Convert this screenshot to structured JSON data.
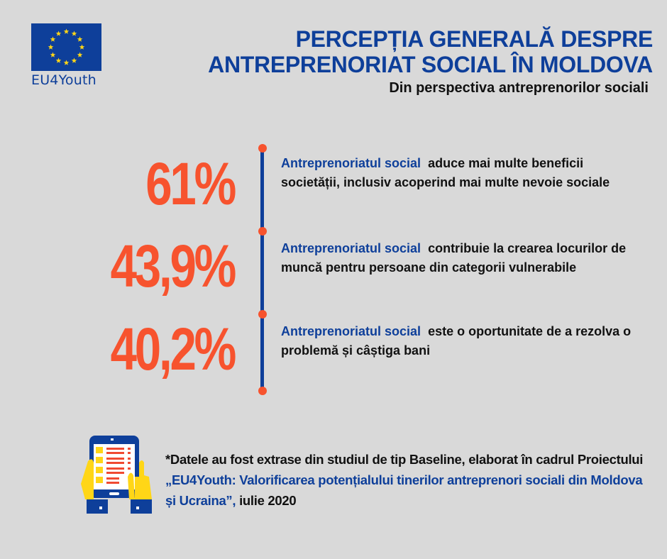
{
  "logo": {
    "flag_icon": "eu-flag-icon",
    "text": "EU4Youth"
  },
  "header": {
    "title_line1": "PERCEPȚIA GENERALĂ DESPRE",
    "title_line2": "ANTREPRENORIAT SOCIAL ÎN MOLDOVA",
    "subtitle": "Din perspectiva antreprenorilor sociali"
  },
  "stats": [
    {
      "value": "61%",
      "highlight": "Antreprenoriatul social",
      "text": "aduce mai multe beneficii societății, inclusiv  acoperind mai multe nevoie sociale"
    },
    {
      "value": "43,9%",
      "highlight": "Antreprenoriatul social",
      "text": "contribuie la crearea locurilor de muncă pentru persoane din categorii vulnerabile"
    },
    {
      "value": "40,2%",
      "highlight": "Antreprenoriatul social",
      "text": "este o oportunitate de a rezolva o problemă și câștiga bani"
    }
  ],
  "footnote": {
    "icon": "tablet-survey-icon",
    "prefix": "*Datele au fost extrase din studiul de tip Baseline, elaborat în cadrul Proiectului ",
    "project": "„EU4Youth: Valorificarea potențialului tinerilor antreprenori sociali din Moldova și Ucraina”,",
    "suffix": "  iulie 2020"
  },
  "colors": {
    "background": "#d9d9d9",
    "brand_blue": "#0e3f9a",
    "accent_orange": "#f7532e",
    "eu_yellow": "#ffd617"
  }
}
